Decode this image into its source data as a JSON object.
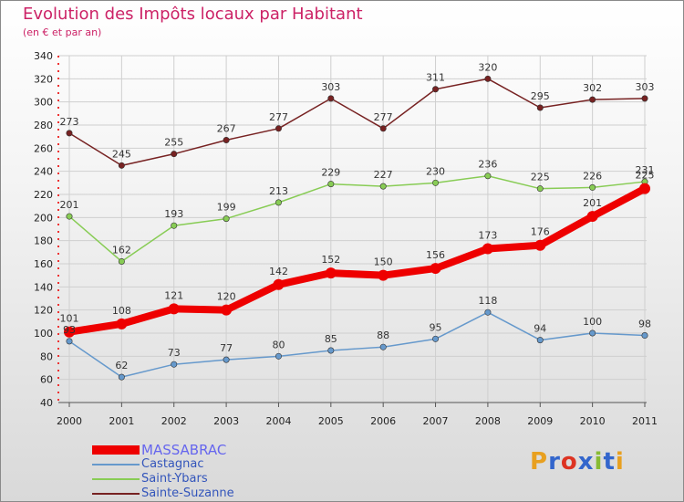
{
  "chart_data": {
    "type": "line",
    "title": "Evolution des Impôts locaux par Habitant",
    "subtitle": "(en € et par an)",
    "xlabel": "",
    "ylabel": "",
    "categories": [
      "2000",
      "2001",
      "2002",
      "2003",
      "2004",
      "2005",
      "2006",
      "2007",
      "2008",
      "2009",
      "2010",
      "2011"
    ],
    "ylim": [
      40,
      340
    ],
    "yticks": [
      "40",
      "60",
      "80",
      "100",
      "120",
      "140",
      "160",
      "180",
      "200",
      "220",
      "240",
      "260",
      "280",
      "300",
      "320",
      "340"
    ],
    "grid": true,
    "legend_position": "bottom-left",
    "series": [
      {
        "name": "MASSABRAC",
        "color": "#ee0000",
        "values": [
          101,
          108,
          121,
          120,
          142,
          152,
          150,
          156,
          173,
          176,
          201,
          225
        ]
      },
      {
        "name": "Castagnac",
        "color": "#6699cc",
        "values": [
          93,
          62,
          73,
          77,
          80,
          85,
          88,
          95,
          118,
          94,
          100,
          98
        ]
      },
      {
        "name": "Saint-Ybars",
        "color": "#88cc55",
        "values": [
          201,
          162,
          193,
          199,
          213,
          229,
          227,
          230,
          236,
          225,
          226,
          231
        ]
      },
      {
        "name": "Sainte-Suzanne",
        "color": "#772222",
        "values": [
          273,
          245,
          255,
          267,
          277,
          303,
          277,
          311,
          320,
          295,
          302,
          303
        ]
      }
    ]
  },
  "logo": {
    "text": "Proxiti"
  }
}
